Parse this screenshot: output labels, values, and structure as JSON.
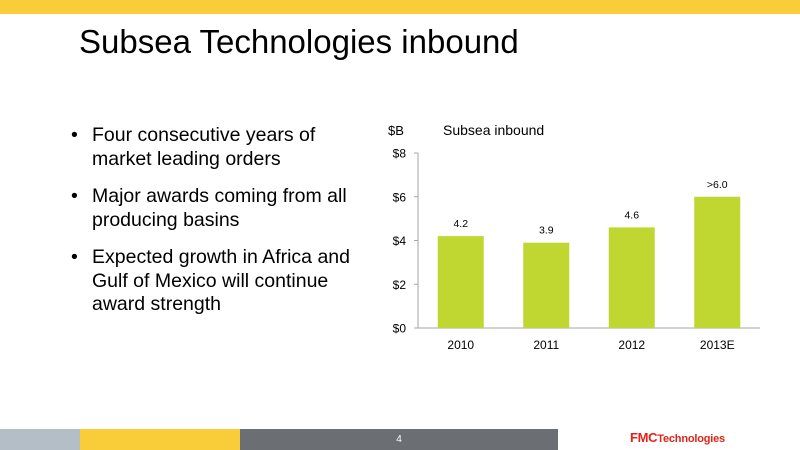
{
  "slide": {
    "title": "Subsea Technologies inbound",
    "bullets": [
      "Four consecutive years of market leading orders",
      "Major awards coming from all producing basins",
      "Expected growth in Africa and Gulf of Mexico will continue award strength"
    ],
    "page_number": "4",
    "logo": {
      "brand": "FMC",
      "suffix": "Technologies"
    }
  },
  "colors": {
    "accent_yellow": "#f9cd3a",
    "bar_green": "#bfd730",
    "footer_grey": "#b4bec6",
    "footer_dark": "#6b6f74",
    "logo_red": "#e2231a"
  },
  "chart_data": {
    "type": "bar",
    "title": "Subsea inbound",
    "ylabel": "$B",
    "xlabel": "",
    "categories": [
      "2010",
      "2011",
      "2012",
      "2013E"
    ],
    "values": [
      4.2,
      3.9,
      4.6,
      6.0
    ],
    "data_labels": [
      "4.2",
      "3.9",
      "4.6",
      ">6.0"
    ],
    "yticks": [
      "$0",
      "$2",
      "$4",
      "$6",
      "$8"
    ],
    "ylim": [
      0,
      8
    ],
    "grid": false,
    "legend": "none"
  }
}
